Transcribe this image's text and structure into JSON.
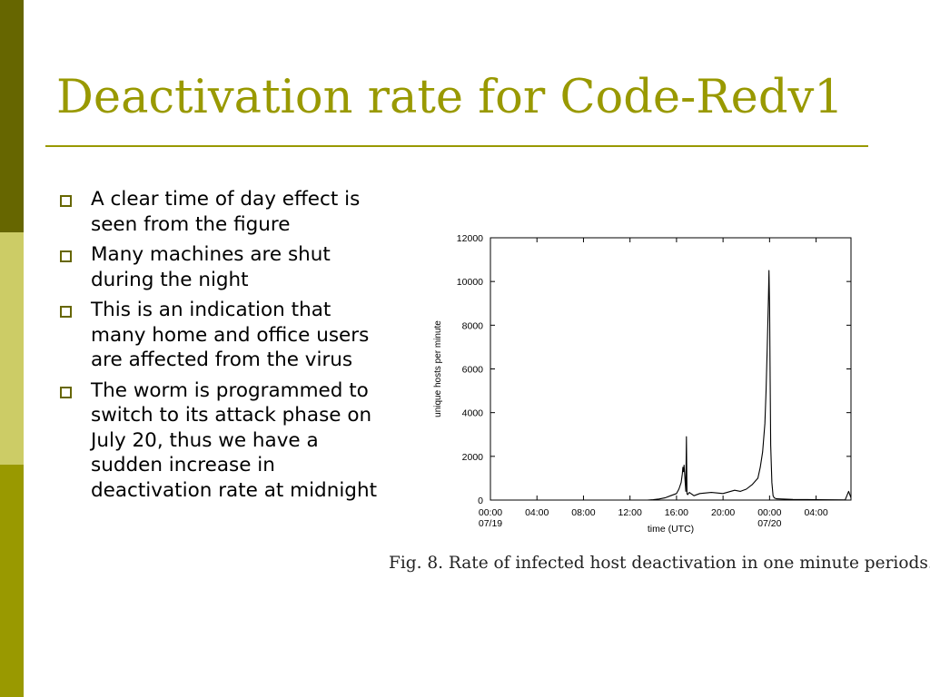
{
  "slide": {
    "title": "Deactivation rate for Code-Redv1",
    "bullets": [
      "A clear time of day effect is seen from the figure",
      "Many machines are shut during the night",
      "This is an indication that many home and office users are affected from the virus",
      "The worm is programmed to switch to its attack phase on July 20, thus we have a sudden increase in deactivation rate at midnight"
    ],
    "caption": "Fig. 8.  Rate of infected host deactivation in one minute periods."
  },
  "theme": {
    "title_color": "#999900",
    "strip_colors": [
      "#666600",
      "#cccc66",
      "#999900"
    ],
    "bullet_icon": "hollow-square-icon"
  },
  "chart_data": {
    "type": "line",
    "xlabel": "time (UTC)",
    "ylabel": "unique hosts per minute",
    "xlim": [
      0,
      31
    ],
    "ylim": [
      0,
      12000
    ],
    "x_unit": "hours since 00:00 07/19",
    "yticks": [
      0,
      2000,
      4000,
      6000,
      8000,
      10000,
      12000
    ],
    "xticks": [
      {
        "value": 0,
        "label": "00:00",
        "sublabel": "07/19"
      },
      {
        "value": 4,
        "label": "04:00",
        "sublabel": ""
      },
      {
        "value": 8,
        "label": "08:00",
        "sublabel": ""
      },
      {
        "value": 12,
        "label": "12:00",
        "sublabel": ""
      },
      {
        "value": 16,
        "label": "16:00",
        "sublabel": ""
      },
      {
        "value": 20,
        "label": "20:00",
        "sublabel": ""
      },
      {
        "value": 24,
        "label": "00:00",
        "sublabel": "07/20"
      },
      {
        "value": 28,
        "label": "04:00",
        "sublabel": ""
      }
    ],
    "grid": false,
    "series": [
      {
        "x": [
          0,
          13.5,
          14.0,
          14.5,
          15.0,
          15.5,
          16.0,
          16.2,
          16.4,
          16.5,
          16.55,
          16.6,
          16.65,
          16.8,
          16.85,
          16.9,
          16.95,
          17.1,
          17.5,
          18.0,
          19.0,
          20.0,
          21.0,
          21.5,
          22.0,
          22.5,
          23.0,
          23.2,
          23.4,
          23.6,
          23.7,
          23.8,
          23.9,
          23.95,
          24.0,
          24.05,
          24.1,
          24.2,
          24.3,
          24.4,
          24.6,
          25.0,
          26.0,
          28.0,
          30.5,
          30.8,
          31.0
        ],
        "y": [
          0,
          0,
          20,
          50,
          100,
          200,
          300,
          500,
          800,
          1200,
          1500,
          1300,
          1600,
          400,
          2900,
          300,
          250,
          350,
          200,
          300,
          350,
          300,
          450,
          400,
          500,
          700,
          1000,
          1500,
          2200,
          3500,
          5000,
          7000,
          9200,
          10500,
          8800,
          5500,
          2500,
          800,
          200,
          100,
          60,
          50,
          30,
          20,
          10,
          400,
          100
        ]
      }
    ]
  }
}
